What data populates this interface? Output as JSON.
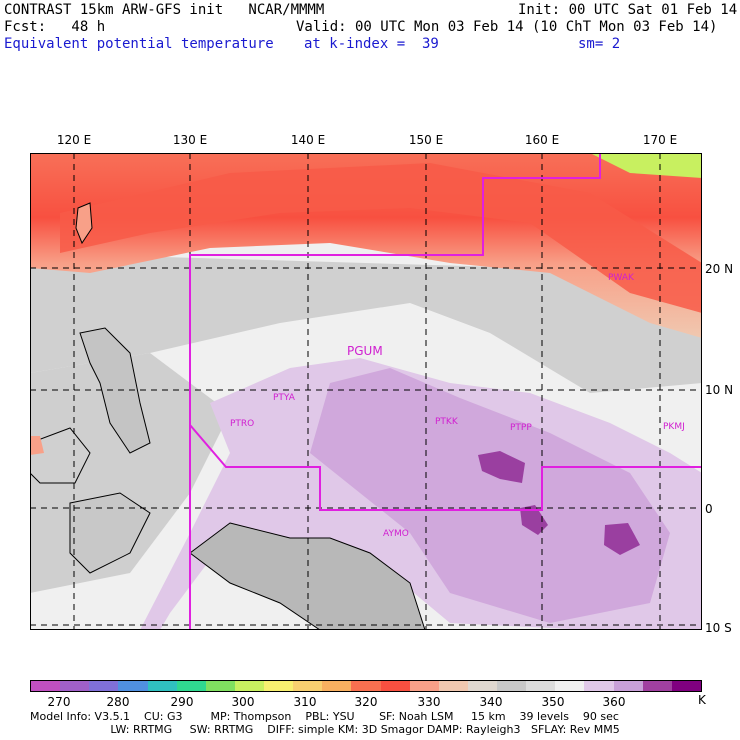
{
  "header": {
    "line1_left": "CONTRAST 15km ARW-GFS init   NCAR/MMMM",
    "line1_right": "Init: 00 UTC Sat 01 Feb 14",
    "line2_left": "Fcst:   48 h",
    "line2_right": "Valid: 00 UTC Mon 03 Feb 14 (10 ChT Mon 03 Feb 14)",
    "line3_left": "Equivalent potential temperature",
    "line3_mid": "at k-index =  39",
    "line3_right": "sm= 2"
  },
  "map": {
    "lon_labels": [
      "120 E",
      "130 E",
      "140 E",
      "150 E",
      "160 E",
      "170 E"
    ],
    "lat_labels": [
      "20 N",
      "10 N",
      "0",
      "10 S"
    ],
    "stations": [
      {
        "id": "PWAK",
        "size": "small"
      },
      {
        "id": "PGUM",
        "size": "big"
      },
      {
        "id": "PTYA",
        "size": "small"
      },
      {
        "id": "PTRO",
        "size": "small"
      },
      {
        "id": "PTKK",
        "size": "small"
      },
      {
        "id": "PTPP",
        "size": "small"
      },
      {
        "id": "PKMJ",
        "size": "small"
      },
      {
        "id": "AYMO",
        "size": "small"
      }
    ],
    "boundary_color": "#e020e0"
  },
  "colorbar": {
    "colors": [
      "#c050c0",
      "#a060c8",
      "#8070d8",
      "#5090e0",
      "#30c0c0",
      "#30d890",
      "#80e060",
      "#c8f060",
      "#f8f070",
      "#f8d070",
      "#f8b060",
      "#f87050",
      "#f85040",
      "#f8a088",
      "#f0c8b0",
      "#e0d8d0",
      "#c8c8c8",
      "#dcdcdc",
      "#f0f0f0",
      "#e0c8e8",
      "#c8a0d8",
      "#a040a0",
      "#800080"
    ],
    "ticks": [
      "270",
      "280",
      "290",
      "300",
      "310",
      "320",
      "330",
      "340",
      "350",
      "360"
    ],
    "unit": "K"
  },
  "footer": {
    "line1": "Model Info: V3.5.1    CU: G3        MP: Thompson    PBL: YSU       SF: Noah LSM     15 km    39 levels    90 sec",
    "line2": "                       LW: RRTMG     SW: RRTMG    DIFF: simple KM: 3D Smagor DAMP: Rayleigh3   SFLAY: Rev MM5"
  }
}
